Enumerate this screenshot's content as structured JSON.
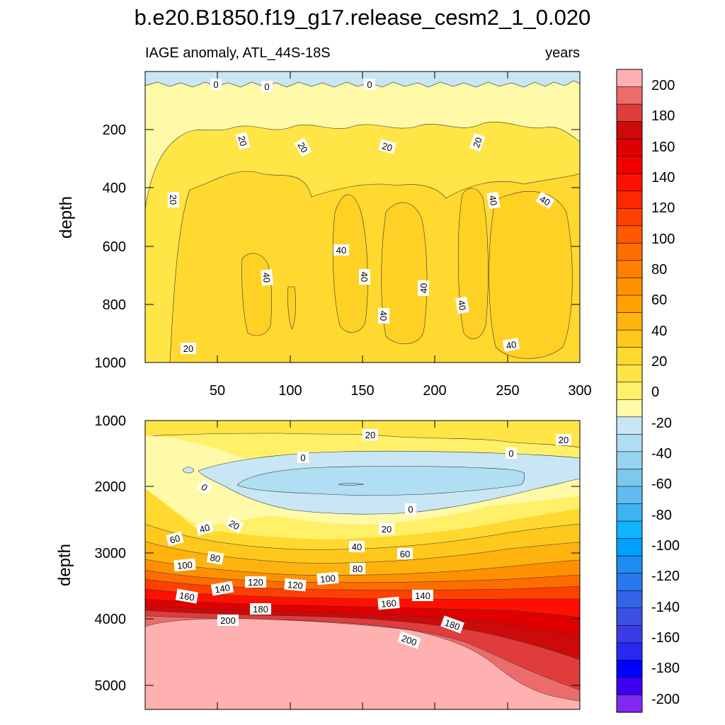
{
  "figure_title": "b.e20.B1850.f19_g17.release_cesm2_1_0.020",
  "colors": {
    "positive": [
      "#fffaa8",
      "#fff06a",
      "#ffe545",
      "#ffd930",
      "#ffc81c",
      "#ffb30f",
      "#ffa200",
      "#ff9100",
      "#ff8000",
      "#ff6c00",
      "#ff5800",
      "#ff4000",
      "#ff2800",
      "#ff1000",
      "#f20000",
      "#e00000",
      "#cd0a0a",
      "#e03c3c",
      "#ec6c6c",
      "#ffb0b0"
    ],
    "negative": [
      "#c8e6f4",
      "#b0def2",
      "#97d4f0",
      "#7dc8ee",
      "#62bbee",
      "#3cb4f2",
      "#10b4ff",
      "#00a0ff",
      "#1e8cf0",
      "#2878ec",
      "#3264e8",
      "#3c50e4",
      "#3c3ce6",
      "#2828f0",
      "#0000ff",
      "#3c00f0",
      "#8228f0"
    ]
  },
  "chart_data": [
    {
      "type": "contour",
      "subtitle_left": "IAGE anomaly, ATL_44S-18S",
      "subtitle_right": "years",
      "xlabel": "",
      "ylabel": "depth",
      "xlim": [
        0,
        300
      ],
      "ylim": [
        1000,
        0
      ],
      "x_tick_labels": [
        "50",
        "100",
        "150",
        "200",
        "250",
        "300"
      ],
      "y_tick_labels": [
        "200",
        "400",
        "600",
        "800",
        "1000"
      ],
      "contour_interval": 10,
      "contour_labels": [
        "0",
        "0",
        "0",
        "20",
        "20",
        "20",
        "20",
        "20",
        "20",
        "40",
        "40",
        "40",
        "40",
        "40",
        "40",
        "40",
        "40",
        "40"
      ]
    },
    {
      "type": "contour",
      "ylabel": "depth",
      "xlim": [
        0,
        300
      ],
      "ylim": [
        5300,
        1000
      ],
      "y_tick_labels": [
        "1000",
        "2000",
        "3000",
        "4000",
        "5000"
      ],
      "contour_interval": 10,
      "contour_labels": [
        "20",
        "20",
        "0",
        "0",
        "0",
        "0",
        "20",
        "20",
        "40",
        "40",
        "60",
        "60",
        "80",
        "80",
        "100",
        "100",
        "120",
        "120",
        "140",
        "140",
        "160",
        "160",
        "180",
        "180",
        "200",
        "200"
      ]
    }
  ],
  "colorbar": {
    "labels": [
      "200",
      "180",
      "160",
      "140",
      "120",
      "100",
      "80",
      "60",
      "40",
      "20",
      "0",
      "-20",
      "-40",
      "-60",
      "-80",
      "-100",
      "-120",
      "-140",
      "-160",
      "-180",
      "-200"
    ],
    "range": [
      -210,
      210
    ],
    "interval": 10
  }
}
